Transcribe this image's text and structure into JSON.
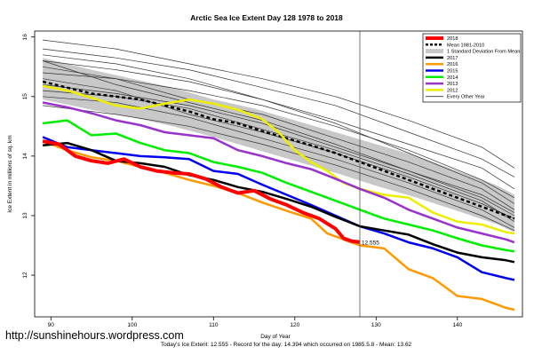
{
  "chart_data": {
    "type": "line",
    "title": "Arctic Sea Ice Extent Day 128 1978 to 2018",
    "xlabel": "Day of Year",
    "ylabel": "Ice Extent in millions of sq. km",
    "xlim": [
      88,
      148
    ],
    "ylim": [
      11.3,
      16.1
    ],
    "x_ticks": [
      90,
      100,
      110,
      120,
      130,
      140
    ],
    "y_ticks": [
      12,
      13,
      14,
      15,
      16
    ],
    "current_day": 128,
    "current_value": 12.555,
    "current_value_label": "12.555",
    "footer": "Today's Ice Extent: 12.555  - Record for the day: 14.394 which occurred on 1985.5.8  - Mean: 13.62",
    "watermark": "http://sunshinehours.wordpress.com",
    "grid": false,
    "legend_position": "top-right",
    "legend": [
      {
        "label": "2018",
        "color": "#ff0000",
        "style": "solid",
        "width": 4
      },
      {
        "label": "Mean 1981-2010",
        "color": "#000000",
        "style": "dashed",
        "width": 2.5
      },
      {
        "label": "1 Standard Deviation From Mean",
        "color": "#c8c8c8",
        "style": "box",
        "width": 6
      },
      {
        "label": "2017",
        "color": "#000000",
        "style": "solid",
        "width": 2.5
      },
      {
        "label": "2016",
        "color": "#ff9900",
        "style": "solid",
        "width": 2.5
      },
      {
        "label": "2015",
        "color": "#0000ee",
        "style": "solid",
        "width": 2.5
      },
      {
        "label": "2014",
        "color": "#00ee00",
        "style": "solid",
        "width": 2.5
      },
      {
        "label": "2013",
        "color": "#9933cc",
        "style": "solid",
        "width": 2.5
      },
      {
        "label": "2012",
        "color": "#eeee00",
        "style": "solid",
        "width": 2.5
      },
      {
        "label": "Every Other Year",
        "color": "#333333",
        "style": "solid",
        "width": 0.8
      }
    ],
    "band": {
      "x": [
        89,
        95,
        100,
        105,
        110,
        115,
        120,
        125,
        130,
        135,
        140,
        145,
        147
      ],
      "upper": [
        15.65,
        15.45,
        15.3,
        15.15,
        14.95,
        14.8,
        14.6,
        14.4,
        14.2,
        14.0,
        13.75,
        13.5,
        13.35
      ],
      "lower": [
        14.95,
        14.78,
        14.65,
        14.5,
        14.32,
        14.12,
        13.92,
        13.72,
        13.5,
        13.3,
        13.08,
        12.85,
        12.72
      ]
    },
    "series": [
      {
        "name": "Mean 1981-2010",
        "color": "#000000",
        "dashed": true,
        "width": 2.5,
        "x": [
          89,
          92,
          95,
          98,
          101,
          104,
          107,
          110,
          113,
          116,
          119,
          122,
          125,
          128,
          131,
          134,
          137,
          140,
          143,
          146,
          147
        ],
        "y": [
          15.25,
          15.15,
          15.05,
          15.0,
          14.95,
          14.85,
          14.75,
          14.62,
          14.55,
          14.42,
          14.3,
          14.18,
          14.05,
          13.9,
          13.75,
          13.6,
          13.45,
          13.3,
          13.15,
          13.0,
          12.95
        ]
      },
      {
        "name": "2012",
        "color": "#eeee00",
        "width": 2.5,
        "x": [
          89,
          92,
          95,
          98,
          101,
          104,
          107,
          110,
          113,
          116,
          118,
          120,
          122,
          124,
          126,
          128,
          131,
          134,
          137,
          140,
          143,
          146,
          147
        ],
        "y": [
          15.18,
          15.1,
          14.98,
          14.85,
          14.8,
          14.88,
          14.95,
          14.88,
          14.78,
          14.62,
          14.4,
          14.1,
          13.9,
          13.75,
          13.55,
          13.45,
          13.35,
          13.3,
          13.05,
          12.9,
          12.85,
          12.72,
          12.7
        ]
      },
      {
        "name": "2013",
        "color": "#9933cc",
        "width": 2.5,
        "x": [
          89,
          92,
          95,
          98,
          101,
          104,
          107,
          110,
          113,
          116,
          119,
          122,
          125,
          128,
          131,
          134,
          137,
          140,
          143,
          146,
          147
        ],
        "y": [
          14.9,
          14.82,
          14.72,
          14.6,
          14.52,
          14.4,
          14.35,
          14.3,
          14.1,
          14.0,
          13.88,
          13.78,
          13.62,
          13.45,
          13.3,
          13.1,
          12.95,
          12.8,
          12.7,
          12.6,
          12.55
        ]
      },
      {
        "name": "2014",
        "color": "#00ee00",
        "width": 2.5,
        "x": [
          89,
          92,
          95,
          98,
          101,
          104,
          107,
          110,
          113,
          116,
          119,
          122,
          125,
          128,
          131,
          134,
          137,
          140,
          143,
          146,
          147
        ],
        "y": [
          14.55,
          14.6,
          14.35,
          14.38,
          14.22,
          14.1,
          14.05,
          13.9,
          13.82,
          13.72,
          13.55,
          13.4,
          13.25,
          13.1,
          12.95,
          12.85,
          12.75,
          12.62,
          12.5,
          12.42,
          12.4
        ]
      },
      {
        "name": "2015",
        "color": "#0000ee",
        "width": 2.5,
        "x": [
          89,
          92,
          95,
          98,
          101,
          104,
          107,
          110,
          113,
          116,
          119,
          122,
          125,
          128,
          131,
          134,
          137,
          140,
          143,
          146,
          147
        ],
        "y": [
          14.32,
          14.15,
          14.1,
          14.05,
          14.0,
          13.98,
          13.95,
          13.75,
          13.7,
          13.52,
          13.35,
          13.18,
          13.0,
          12.82,
          12.7,
          12.55,
          12.45,
          12.3,
          12.05,
          11.95,
          11.92
        ]
      },
      {
        "name": "2016",
        "color": "#ff9900",
        "width": 2.5,
        "x": [
          89,
          92,
          95,
          98,
          101,
          104,
          107,
          110,
          113,
          116,
          119,
          122,
          124,
          126,
          128,
          131,
          134,
          137,
          140,
          143,
          146,
          147
        ],
        "y": [
          14.25,
          14.1,
          13.98,
          13.92,
          13.82,
          13.72,
          13.6,
          13.5,
          13.38,
          13.22,
          13.08,
          12.95,
          12.7,
          12.6,
          12.5,
          12.45,
          12.1,
          11.95,
          11.65,
          11.6,
          11.45,
          11.42
        ]
      },
      {
        "name": "2017",
        "color": "#000000",
        "width": 2.5,
        "x": [
          89,
          92,
          95,
          98,
          101,
          104,
          107,
          110,
          113,
          116,
          119,
          122,
          125,
          128,
          131,
          134,
          137,
          140,
          143,
          146,
          147
        ],
        "y": [
          14.18,
          14.22,
          14.1,
          13.92,
          13.88,
          13.82,
          13.68,
          13.6,
          13.48,
          13.4,
          13.28,
          13.15,
          12.98,
          12.82,
          12.75,
          12.68,
          12.52,
          12.38,
          12.3,
          12.25,
          12.22
        ]
      },
      {
        "name": "2018",
        "color": "#ff0000",
        "width": 4,
        "x": [
          89,
          91,
          93,
          95,
          97,
          99,
          101,
          103,
          105,
          107,
          109,
          111,
          113,
          115,
          117,
          119,
          121,
          123,
          125,
          126,
          127,
          128
        ],
        "y": [
          14.25,
          14.2,
          14.0,
          13.92,
          13.88,
          13.95,
          13.82,
          13.75,
          13.72,
          13.7,
          13.62,
          13.48,
          13.38,
          13.42,
          13.28,
          13.18,
          13.05,
          12.95,
          12.78,
          12.62,
          12.57,
          12.555
        ]
      }
    ],
    "background_years": [
      {
        "x": [
          89,
          98,
          107,
          116,
          125,
          134,
          143,
          147
        ],
        "y": [
          15.95,
          15.8,
          15.55,
          15.3,
          15.0,
          14.6,
          14.15,
          13.8
        ]
      },
      {
        "x": [
          89,
          98,
          107,
          116,
          125,
          134,
          143,
          147
        ],
        "y": [
          15.8,
          15.65,
          15.45,
          15.15,
          14.85,
          14.4,
          13.95,
          13.65
        ]
      },
      {
        "x": [
          89,
          98,
          107,
          116,
          125,
          134,
          143,
          147
        ],
        "y": [
          15.6,
          15.45,
          15.25,
          14.95,
          14.6,
          14.2,
          13.8,
          13.45
        ]
      },
      {
        "x": [
          89,
          98,
          107,
          116,
          125,
          134,
          143,
          147
        ],
        "y": [
          15.4,
          15.3,
          15.1,
          14.85,
          14.5,
          14.1,
          13.6,
          13.3
        ]
      },
      {
        "x": [
          89,
          98,
          107,
          116,
          125,
          134,
          143,
          147
        ],
        "y": [
          15.5,
          15.3,
          14.95,
          14.7,
          14.3,
          13.9,
          13.45,
          13.1
        ]
      },
      {
        "x": [
          89,
          98,
          107,
          116,
          125,
          134,
          143,
          147
        ],
        "y": [
          15.2,
          15.05,
          14.85,
          14.55,
          14.15,
          13.75,
          13.3,
          13.0
        ]
      },
      {
        "x": [
          89,
          98,
          107,
          116,
          125,
          134,
          143,
          147
        ],
        "y": [
          15.3,
          15.1,
          14.7,
          14.4,
          14.05,
          13.65,
          13.2,
          12.95
        ]
      },
      {
        "x": [
          89,
          98,
          107,
          116,
          125,
          134,
          143,
          147
        ],
        "y": [
          15.0,
          14.9,
          14.65,
          14.3,
          13.95,
          13.55,
          13.1,
          12.8
        ]
      },
      {
        "x": [
          89,
          98,
          107,
          116,
          125,
          134,
          143,
          147
        ],
        "y": [
          15.6,
          15.2,
          14.9,
          14.6,
          14.2,
          13.75,
          13.35,
          13.05
        ]
      },
      {
        "x": [
          89,
          98,
          107,
          116,
          125,
          134,
          143,
          147
        ],
        "y": [
          14.85,
          14.7,
          14.5,
          14.2,
          13.85,
          13.45,
          13.0,
          12.75
        ]
      },
      {
        "x": [
          89,
          98,
          107,
          116,
          125,
          134,
          143,
          147
        ],
        "y": [
          15.7,
          15.55,
          15.3,
          14.95,
          14.55,
          14.05,
          13.55,
          13.2
        ]
      },
      {
        "x": [
          89,
          98,
          107,
          116,
          125,
          134,
          143,
          147
        ],
        "y": [
          15.1,
          15.0,
          14.8,
          14.45,
          14.1,
          13.7,
          13.25,
          12.9
        ]
      }
    ]
  }
}
